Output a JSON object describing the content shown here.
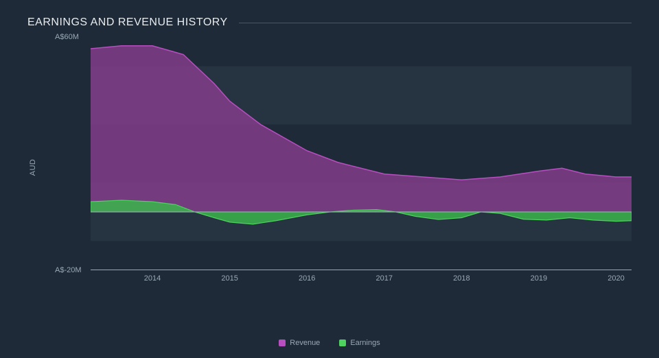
{
  "chart": {
    "type": "area",
    "title": "EARNINGS AND REVENUE HISTORY",
    "background_color": "#1e2a38",
    "grid_band_color": "#263340",
    "axis_line_color": "#9aa8b5",
    "text_color": "#e8ecef",
    "muted_text_color": "#9aa8b5",
    "title_fontsize": 16,
    "tick_fontsize": 11,
    "y_axis_label": "AUD",
    "y_ticks": [
      {
        "value": 60,
        "label": "A$60M"
      },
      {
        "value": -20,
        "label": "A$-20M"
      }
    ],
    "ylim": [
      -20,
      60
    ],
    "x_ticks": [
      "2014",
      "2015",
      "2016",
      "2017",
      "2018",
      "2019",
      "2020"
    ],
    "x_range_fraction": {
      "start": -0.8,
      "end": 6.2
    },
    "series": [
      {
        "name": "Revenue",
        "fill_color": "#8a3f8f",
        "stroke_color": "#b84fc0",
        "fill_opacity": 0.78,
        "stroke_width": 1.5,
        "baseline": 0,
        "points": [
          {
            "x": -0.8,
            "y": 56
          },
          {
            "x": -0.4,
            "y": 57
          },
          {
            "x": 0.0,
            "y": 57
          },
          {
            "x": 0.4,
            "y": 54
          },
          {
            "x": 0.8,
            "y": 44
          },
          {
            "x": 1.0,
            "y": 38
          },
          {
            "x": 1.4,
            "y": 30
          },
          {
            "x": 1.8,
            "y": 24
          },
          {
            "x": 2.0,
            "y": 21
          },
          {
            "x": 2.4,
            "y": 17
          },
          {
            "x": 3.0,
            "y": 13
          },
          {
            "x": 3.5,
            "y": 12
          },
          {
            "x": 4.0,
            "y": 11
          },
          {
            "x": 4.5,
            "y": 12
          },
          {
            "x": 5.0,
            "y": 14
          },
          {
            "x": 5.3,
            "y": 15
          },
          {
            "x": 5.6,
            "y": 13
          },
          {
            "x": 6.0,
            "y": 12
          },
          {
            "x": 6.2,
            "y": 12
          }
        ]
      },
      {
        "name": "Earnings",
        "pos_fill_color": "#39b54a",
        "pos_stroke_color": "#4ed15f",
        "neg_fill_color": "#e85a4f",
        "neg_stroke_color": "#ff6f61",
        "fill_opacity": 0.85,
        "stroke_width": 1.2,
        "baseline": 0,
        "points": [
          {
            "x": -0.8,
            "y": 3.5
          },
          {
            "x": -0.4,
            "y": 4.0
          },
          {
            "x": 0.0,
            "y": 3.5
          },
          {
            "x": 0.3,
            "y": 2.5
          },
          {
            "x": 0.55,
            "y": 0.0
          },
          {
            "x": 0.8,
            "y": -2.0
          },
          {
            "x": 1.0,
            "y": -3.5
          },
          {
            "x": 1.3,
            "y": -4.2
          },
          {
            "x": 1.6,
            "y": -3.0
          },
          {
            "x": 2.0,
            "y": -1.0
          },
          {
            "x": 2.3,
            "y": 0.0
          },
          {
            "x": 2.6,
            "y": 0.6
          },
          {
            "x": 2.9,
            "y": 0.8
          },
          {
            "x": 3.15,
            "y": 0.0
          },
          {
            "x": 3.4,
            "y": -1.5
          },
          {
            "x": 3.7,
            "y": -2.6
          },
          {
            "x": 4.0,
            "y": -2.0
          },
          {
            "x": 4.25,
            "y": 0.0
          },
          {
            "x": 4.5,
            "y": -0.5
          },
          {
            "x": 4.8,
            "y": -2.5
          },
          {
            "x": 5.1,
            "y": -2.8
          },
          {
            "x": 5.4,
            "y": -2.0
          },
          {
            "x": 5.7,
            "y": -2.8
          },
          {
            "x": 6.0,
            "y": -3.2
          },
          {
            "x": 6.2,
            "y": -3.0
          }
        ]
      }
    ],
    "legend": [
      {
        "label": "Revenue",
        "color": "#b84fc0"
      },
      {
        "label": "Earnings",
        "color": "#4ed15f"
      }
    ]
  }
}
